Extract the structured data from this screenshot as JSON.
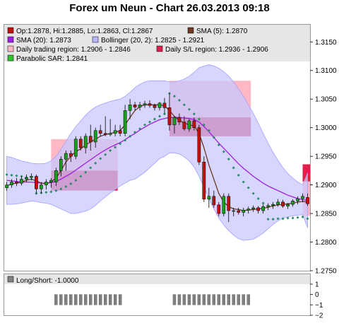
{
  "title": "Forex um Neun - Chart 26.03.2013 09:18",
  "colors": {
    "background": "#ffffff",
    "legend_bg": "#e6e6e6",
    "bollinger_fill": "#c8c8ff",
    "bollinger_edge": "#a0a0ff",
    "daily_trading_fill": "#ffb8c4",
    "daily_sl_fill": "#e0204a",
    "candle_up": "#18a018",
    "candle_down": "#c01010",
    "sma5": "#6b3a20",
    "sma20": "#a020e0",
    "sar": "#2a8a6a",
    "longshort": "#808080"
  },
  "legend": {
    "ohlc": "Op:1.2878, Hi:1.2885, Lo:1.2863, Cl:1.2867",
    "sma5": "SMA (5): 1.2870",
    "sma20": "SMA (20): 1.2873",
    "bollinger": "Bollinger (20, 2): 1.2825 - 1.2921",
    "daily_trading": "Daily trading region: 1.2906 - 1.2846",
    "daily_sl": "Daily S/L region: 1.2936 - 1.2906",
    "sar": "Parabolic SAR: 1.2841"
  },
  "longshort_legend": "Long/Short: -1.0000",
  "chart_data": {
    "type": "candlestick",
    "ylim": [
      1.275,
      1.318
    ],
    "y_ticks": [
      "1.2750",
      "1.2800",
      "1.2850",
      "1.2900",
      "1.2950",
      "1.3000",
      "1.3050",
      "1.3100",
      "1.3150"
    ],
    "candles": [
      [
        1.2895,
        1.2905,
        1.289,
        1.29
      ],
      [
        1.29,
        1.291,
        1.2895,
        1.2905
      ],
      [
        1.2905,
        1.2912,
        1.2898,
        1.2903
      ],
      [
        1.2903,
        1.2915,
        1.2899,
        1.291
      ],
      [
        1.291,
        1.2918,
        1.2905,
        1.2913
      ],
      [
        1.2913,
        1.292,
        1.2908,
        1.2915
      ],
      [
        1.2915,
        1.2918,
        1.2885,
        1.2893
      ],
      [
        1.2893,
        1.2905,
        1.2885,
        1.29
      ],
      [
        1.29,
        1.291,
        1.2892,
        1.2905
      ],
      [
        1.2905,
        1.2912,
        1.2895,
        1.2908
      ],
      [
        1.2905,
        1.293,
        1.2898,
        1.2925
      ],
      [
        1.2925,
        1.295,
        1.2915,
        1.2945
      ],
      [
        1.2945,
        1.296,
        1.2925,
        1.2955
      ],
      [
        1.2955,
        1.296,
        1.294,
        1.295
      ],
      [
        1.295,
        1.2985,
        1.2945,
        1.298
      ],
      [
        1.298,
        1.2985,
        1.296,
        1.2965
      ],
      [
        1.2965,
        1.299,
        1.2955,
        1.2985
      ],
      [
        1.2985,
        1.3005,
        1.296,
        1.2975
      ],
      [
        1.2975,
        1.3,
        1.2965,
        1.2995
      ],
      [
        1.2995,
        1.3005,
        1.2985,
        1.299
      ],
      [
        1.299,
        1.302,
        1.2985,
        1.2988
      ],
      [
        1.2988,
        1.3015,
        1.2985,
        1.299
      ],
      [
        1.299,
        1.3005,
        1.2985,
        1.2995
      ],
      [
        1.2995,
        1.3005,
        1.2985,
        1.299
      ],
      [
        1.299,
        1.304,
        1.2985,
        1.303
      ],
      [
        1.303,
        1.305,
        1.3015,
        1.304
      ],
      [
        1.304,
        1.3045,
        1.303,
        1.3036
      ],
      [
        1.3036,
        1.3045,
        1.303,
        1.304
      ],
      [
        1.304,
        1.3047,
        1.3035,
        1.3042
      ],
      [
        1.3042,
        1.3048,
        1.3035,
        1.3039
      ],
      [
        1.3039,
        1.3042,
        1.303,
        1.3035
      ],
      [
        1.3035,
        1.3045,
        1.303,
        1.3043
      ],
      [
        1.3043,
        1.3052,
        1.3025,
        1.3035
      ],
      [
        1.3035,
        1.306,
        1.2995,
        1.3005
      ],
      [
        1.3005,
        1.302,
        1.299,
        1.3018
      ],
      [
        1.3018,
        1.3025,
        1.3005,
        1.301
      ],
      [
        1.301,
        1.302,
        1.2995,
        1.2998
      ],
      [
        1.2998,
        1.3015,
        1.2993,
        1.3012
      ],
      [
        1.3012,
        1.3018,
        1.2995,
        1.3
      ],
      [
        1.3,
        1.3005,
        1.2935,
        1.294
      ],
      [
        1.294,
        1.295,
        1.287,
        1.2875
      ],
      [
        1.2875,
        1.2895,
        1.286,
        1.288
      ],
      [
        1.288,
        1.289,
        1.286,
        1.2865
      ],
      [
        1.2865,
        1.287,
        1.2845,
        1.285
      ],
      [
        1.285,
        1.2885,
        1.2845,
        1.288
      ],
      [
        1.288,
        1.2885,
        1.2835,
        1.2855
      ],
      [
        1.2855,
        1.286,
        1.2845,
        1.2855
      ],
      [
        1.2855,
        1.286,
        1.2848,
        1.2852
      ],
      [
        1.2852,
        1.286,
        1.2845,
        1.2856
      ],
      [
        1.2856,
        1.2862,
        1.285,
        1.2858
      ],
      [
        1.2858,
        1.2864,
        1.2853,
        1.286
      ],
      [
        1.286,
        1.2863,
        1.285,
        1.2855
      ],
      [
        1.2855,
        1.2866,
        1.285,
        1.2862
      ],
      [
        1.2862,
        1.2868,
        1.2856,
        1.2864
      ],
      [
        1.2864,
        1.287,
        1.2858,
        1.2866
      ],
      [
        1.2866,
        1.2875,
        1.2862,
        1.287
      ],
      [
        1.287,
        1.2874,
        1.286,
        1.2863
      ],
      [
        1.2863,
        1.2868,
        1.2858,
        1.2866
      ],
      [
        1.2866,
        1.2875,
        1.2862,
        1.2872
      ],
      [
        1.2872,
        1.288,
        1.2866,
        1.2876
      ],
      [
        1.2876,
        1.2885,
        1.287,
        1.288
      ],
      [
        1.2878,
        1.2885,
        1.2863,
        1.2867
      ]
    ],
    "sma5": [
      1.2898,
      1.2902,
      1.2903,
      1.2905,
      1.2908,
      1.291,
      1.2907,
      1.2903,
      1.2902,
      1.2905,
      1.2912,
      1.2925,
      1.294,
      1.295,
      1.2958,
      1.2963,
      1.297,
      1.2975,
      1.298,
      1.2985,
      1.2988,
      1.299,
      1.2992,
      1.2995,
      1.3005,
      1.3018,
      1.303,
      1.3037,
      1.304,
      1.304,
      1.304,
      1.304,
      1.3038,
      1.303,
      1.302,
      1.3013,
      1.3008,
      1.3005,
      1.3003,
      1.299,
      1.2965,
      1.2935,
      1.291,
      1.2885,
      1.287,
      1.2862,
      1.2858,
      1.2857,
      1.2855,
      1.2856,
      1.2857,
      1.2858,
      1.2859,
      1.2861,
      1.2863,
      1.2865,
      1.2866,
      1.2867,
      1.2868,
      1.287,
      1.2871,
      1.287
    ],
    "sma20": [
      1.2908,
      1.2907,
      1.2906,
      1.2905,
      1.2905,
      1.2905,
      1.2904,
      1.2903,
      1.2903,
      1.2904,
      1.2906,
      1.291,
      1.2915,
      1.292,
      1.2926,
      1.2932,
      1.2938,
      1.2944,
      1.295,
      1.2956,
      1.2961,
      1.2966,
      1.297,
      1.2974,
      1.2979,
      1.2985,
      1.299,
      1.2996,
      1.3001,
      1.3006,
      1.301,
      1.3014,
      1.3016,
      1.3018,
      1.3018,
      1.3018,
      1.3017,
      1.3016,
      1.3014,
      1.301,
      1.3002,
      1.2993,
      1.2983,
      1.2973,
      1.2964,
      1.2955,
      1.2946,
      1.2937,
      1.2929,
      1.2922,
      1.2915,
      1.2909,
      1.2903,
      1.2898,
      1.2894,
      1.289,
      1.2886,
      1.2882,
      1.2879,
      1.2876,
      1.2874,
      1.2873
    ],
    "bb_upper": [
      1.295,
      1.2948,
      1.2945,
      1.2942,
      1.294,
      1.2938,
      1.2937,
      1.2937,
      1.2938,
      1.2942,
      1.295,
      1.2962,
      1.2976,
      1.299,
      1.3002,
      1.3012,
      1.3022,
      1.303,
      1.3036,
      1.304,
      1.3043,
      1.3046,
      1.3048,
      1.305,
      1.3055,
      1.3062,
      1.307,
      1.3076,
      1.308,
      1.3082,
      1.3082,
      1.3082,
      1.3082,
      1.308,
      1.308,
      1.3082,
      1.3085,
      1.309,
      1.3097,
      1.3105,
      1.3108,
      1.311,
      1.3108,
      1.3104,
      1.3098,
      1.309,
      1.308,
      1.3068,
      1.3055,
      1.304,
      1.3025,
      1.3008,
      1.299,
      1.2973,
      1.2957,
      1.2943,
      1.293,
      1.292,
      1.2912,
      1.2905,
      1.29,
      1.2921
    ],
    "bb_lower": [
      1.2866,
      1.2866,
      1.2867,
      1.2868,
      1.287,
      1.2872,
      1.2871,
      1.2869,
      1.2868,
      1.2866,
      1.2862,
      1.2858,
      1.2854,
      1.285,
      1.285,
      1.2852,
      1.2854,
      1.2858,
      1.2864,
      1.2872,
      1.2879,
      1.2886,
      1.2892,
      1.2898,
      1.2903,
      1.2908,
      1.291,
      1.2916,
      1.2922,
      1.293,
      1.2938,
      1.2946,
      1.295,
      1.2956,
      1.2956,
      1.2954,
      1.2949,
      1.2942,
      1.2931,
      1.2915,
      1.2896,
      1.2876,
      1.2858,
      1.2842,
      1.283,
      1.282,
      1.2812,
      1.2806,
      1.2803,
      1.2804,
      1.2805,
      1.281,
      1.2816,
      1.2823,
      1.2831,
      1.2837,
      1.2842,
      1.2844,
      1.2846,
      1.2847,
      1.2848,
      1.2825
    ],
    "sar": [
      1.2918,
      1.2917,
      1.2916,
      1.2915,
      1.2913,
      1.291,
      1.2885,
      1.2886,
      1.2887,
      1.2888,
      1.289,
      1.2893,
      1.2897,
      1.2902,
      1.2908,
      1.2915,
      1.2922,
      1.293,
      1.2938,
      1.2946,
      1.2953,
      1.296,
      1.2966,
      1.2972,
      1.2978,
      1.2985,
      1.2992,
      1.2998,
      1.3005,
      1.301,
      1.3015,
      1.302,
      1.3024,
      1.306,
      1.3055,
      1.3048,
      1.304,
      1.3032,
      1.3024,
      1.3015,
      1.3005,
      1.2995,
      1.2983,
      1.297,
      1.2958,
      1.2945,
      1.293,
      1.2917,
      1.2905,
      1.2895,
      1.2885,
      1.2876,
      1.2868,
      1.284,
      1.284,
      1.2841,
      1.2841,
      1.2842,
      1.2842,
      1.2843,
      1.2844,
      1.2841
    ],
    "daily_regions": [
      {
        "start": 9,
        "end": 22,
        "trading": [
          1.298,
          1.29
        ],
        "sl": [
          1.2925,
          1.289
        ]
      },
      {
        "start": 33,
        "end": 49,
        "trading": [
          1.3082,
          1.2985
        ],
        "sl": [
          1.3018,
          1.2985
        ]
      },
      {
        "start": 60,
        "end": 61,
        "trading": [
          1.2906,
          1.2846
        ],
        "sl": [
          1.2936,
          1.2906
        ]
      }
    ],
    "longshort_ylim": [
      -2,
      1
    ],
    "longshort_ticks": [
      "1",
      "0",
      "−1",
      "−2"
    ],
    "longshort_bars": [
      [
        10,
        23
      ],
      [
        34,
        49
      ]
    ],
    "longshort_value": -1
  }
}
